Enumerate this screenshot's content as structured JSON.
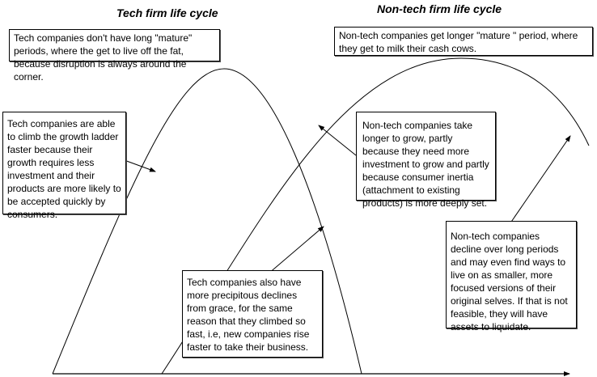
{
  "titles": {
    "tech": "Tech firm life cycle",
    "nontech": "Non-tech firm life cycle"
  },
  "notes": {
    "tech_mature": "Tech companies don't have long \"mature\" periods, where the get to live off the fat, because disruption is always around the corner.",
    "nontech_mature": "Non-tech companies get longer \"mature \" period, where they get to milk their cash cows.",
    "tech_growth": "Tech companies are able to climb the growth ladder faster because their growth requires less investment and their products are more likely to be accepted quickly by consumers.",
    "nontech_growth": "Non-tech companies take longer to grow, partly because they need more investment to grow and partly because consumer inertia (attachment to existing products) is more deeply set.",
    "tech_decline": "Tech companies also have more precipitous declines from grace, for the same reason that they climbed so fast, i.e, new companies rise faster to take their business.",
    "nontech_decline": "Non-tech companies decline over long periods and may even find ways to live on as smaller, more focused versions of their original selves. If that is not feasible, they will have assets to liquidate."
  }
}
